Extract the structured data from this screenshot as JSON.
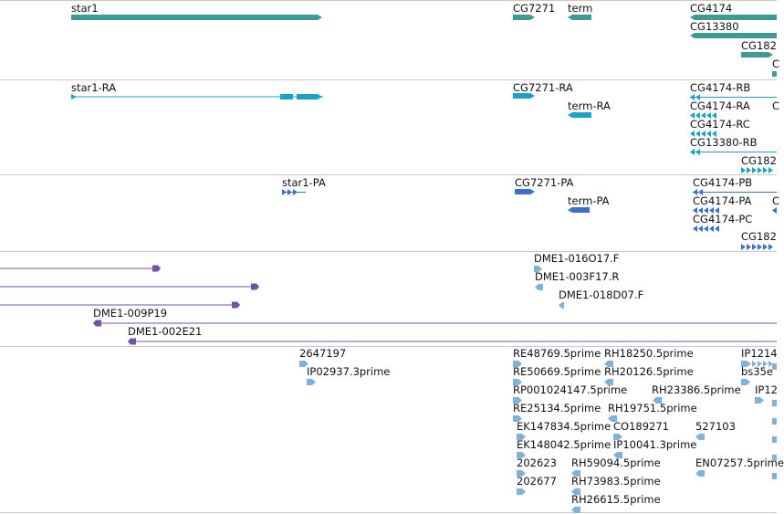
{
  "viewer": {
    "colors": {
      "gene": "#3d9a94",
      "transcript": "#1aa3c4",
      "protein": "#3b6fc9",
      "clone": "#7152a8",
      "est": "#7fb2d9",
      "divider": "#c8c8c8",
      "text": "#111111"
    },
    "tracks": {
      "genes": {
        "labels": [
          "star1",
          "CG7271",
          "term",
          "CG4174",
          "CG13380",
          "CG182"
        ]
      },
      "transcripts": {
        "labels": [
          "star1-RA",
          "CG7271-RA",
          "term-RA",
          "CG4174-RB",
          "CG4174-RA",
          "CG4174-RC",
          "CG13380-RB",
          "CG182"
        ]
      },
      "proteins": {
        "labels": [
          "star1-PA",
          "CG7271-PA",
          "term-PA",
          "CG4174-PB",
          "CG4174-PA",
          "CG4174-PC",
          "CG182"
        ]
      },
      "clones": {
        "labels": [
          "DME1-016O17.F",
          "DME1-003F17.R",
          "DME1-018D07.F",
          "DME1-009P19",
          "DME1-002E21"
        ]
      },
      "ests": {
        "labels": [
          "2647197",
          "IP02937.3prime",
          "RE48769.5prime",
          "RH18250.5prime",
          "IP1214",
          "RE50669.5prime",
          "RH20126.5prime",
          "bs35e",
          "RP001024147.5prime",
          "RH23386.5prime",
          "IP12",
          "RE25134.5prime",
          "RH19751.5prime",
          "EK147834.5prime",
          "CO189271",
          "527103",
          "EK148042.5prime",
          "IP10041.3prime",
          "202623",
          "RH59094.5prime",
          "EN07257.5prime",
          "202677",
          "RH73983.5prime",
          "RH26615.5prime"
        ]
      }
    }
  }
}
